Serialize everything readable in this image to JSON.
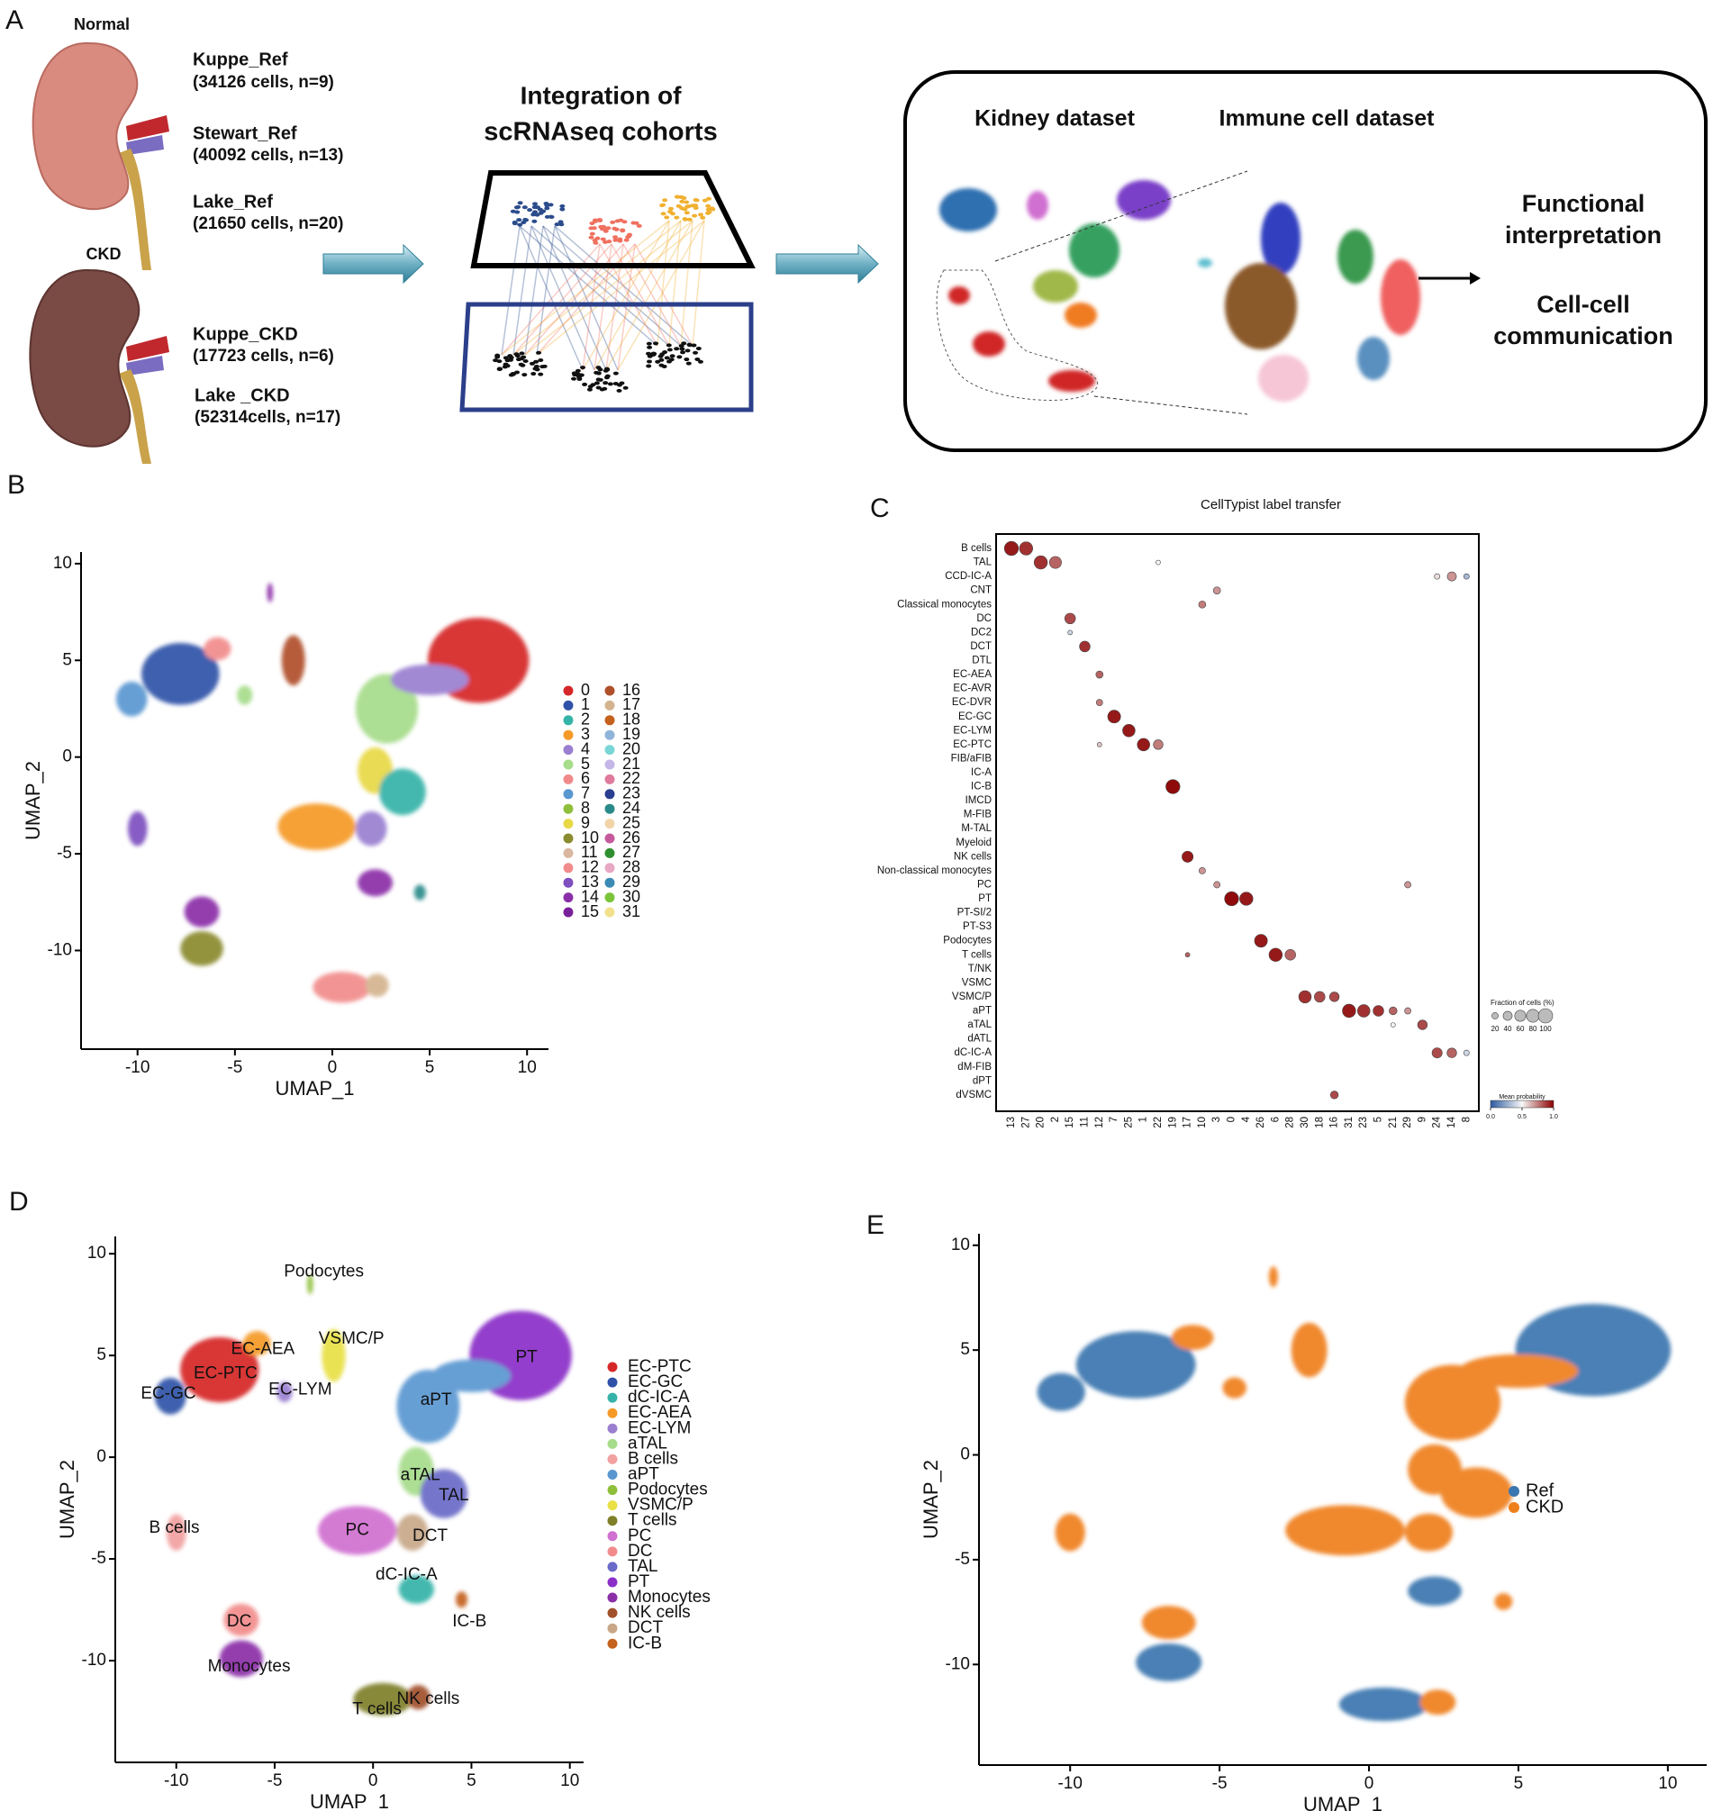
{
  "panel_labels": [
    "A",
    "B",
    "C",
    "D",
    "E"
  ],
  "overview": {
    "normal": "Normal",
    "ckd": "CKD",
    "datasets": [
      {
        "name": "Kuppe_Ref",
        "detail": "(34126 cells, n=9)"
      },
      {
        "name": "Stewart_Ref",
        "detail": "(40092 cells, n=13)"
      },
      {
        "name": "Lake_Ref",
        "detail": "(21650 cells, n=20)"
      },
      {
        "name": "Kuppe_CKD",
        "detail": "(17723 cells, n=6)"
      },
      {
        "name": "Lake _CKD",
        "detail": "(52314cells, n=17)"
      }
    ],
    "integration_title": [
      "Integration of",
      "scRNAseq cohorts"
    ],
    "kidney_dataset": "Kidney dataset",
    "immune_dataset": "Immune cell dataset",
    "outputs": [
      "Functional",
      "interpretation",
      "Cell-cell",
      "communication"
    ]
  },
  "umap_clouds": [
    {
      "x": 7.5,
      "y": 5,
      "rx": 2.6,
      "ry": 2.2
    },
    {
      "x": -7.8,
      "y": 4.3,
      "rx": 2.0,
      "ry": 1.6
    },
    {
      "x": -10.3,
      "y": 3,
      "rx": 0.8,
      "ry": 0.9
    },
    {
      "x": -5.9,
      "y": 5.6,
      "rx": 0.7,
      "ry": 0.6
    },
    {
      "x": -4.5,
      "y": 3.2,
      "rx": 0.4,
      "ry": 0.5
    },
    {
      "x": -2,
      "y": 5,
      "rx": 0.6,
      "ry": 1.3
    },
    {
      "x": -3.2,
      "y": 8.5,
      "rx": 0.15,
      "ry": 0.5
    },
    {
      "x": 2.8,
      "y": 2.5,
      "rx": 1.6,
      "ry": 1.8
    },
    {
      "x": 5,
      "y": 4,
      "rx": 2,
      "ry": 0.8
    },
    {
      "x": 2.2,
      "y": -0.7,
      "rx": 0.9,
      "ry": 1.2
    },
    {
      "x": 3.6,
      "y": -1.8,
      "rx": 1.2,
      "ry": 1.2
    },
    {
      "x": -0.8,
      "y": -3.6,
      "rx": 2,
      "ry": 1.2
    },
    {
      "x": 2,
      "y": -3.7,
      "rx": 0.8,
      "ry": 0.9
    },
    {
      "x": 2.2,
      "y": -6.5,
      "rx": 0.9,
      "ry": 0.7
    },
    {
      "x": 4.5,
      "y": -7,
      "rx": 0.3,
      "ry": 0.4
    },
    {
      "x": -10,
      "y": -3.7,
      "rx": 0.5,
      "ry": 0.9
    },
    {
      "x": -6.7,
      "y": -8,
      "rx": 0.9,
      "ry": 0.8
    },
    {
      "x": -6.7,
      "y": -9.9,
      "rx": 1.1,
      "ry": 0.9
    },
    {
      "x": 0.5,
      "y": -11.9,
      "rx": 1.5,
      "ry": 0.8
    },
    {
      "x": 2.3,
      "y": -11.8,
      "rx": 0.6,
      "ry": 0.6
    }
  ],
  "panel_b": {
    "xlabel": "UMAP_1",
    "ylabel": "UMAP_2",
    "xlim": [
      -12.9,
      11.1
    ],
    "ylim": [
      -15.1,
      10.6
    ],
    "xticks": [
      -10,
      -5,
      0,
      5,
      10
    ],
    "yticks": [
      -10,
      -5,
      0,
      5,
      10
    ],
    "clusters": [
      "0",
      "1",
      "2",
      "3",
      "4",
      "5",
      "6",
      "7",
      "8",
      "9",
      "10",
      "11",
      "12",
      "13",
      "14",
      "15",
      "16",
      "17",
      "18",
      "19",
      "20",
      "21",
      "22",
      "23",
      "24",
      "25",
      "26",
      "27",
      "28",
      "29",
      "30",
      "31"
    ],
    "colors": [
      "#d62728",
      "#2f52a8",
      "#36b3a8",
      "#f59a27",
      "#9a7fd1",
      "#a6dc8a",
      "#f08a8a",
      "#5a97d1",
      "#8fbf3b",
      "#e8d845",
      "#8a8a2e",
      "#d9b7a0",
      "#f28c8c",
      "#7d4fbf",
      "#8b2fa8",
      "#7a1f9a",
      "#b0502a",
      "#d4b48f",
      "#c4611c",
      "#8fb4d9",
      "#7ad6d6",
      "#c4b6e6",
      "#e07a9c",
      "#2a3f8f",
      "#2a8a8a",
      "#f2d4a8",
      "#c45a9c",
      "#2f8f2f",
      "#e8a8c4",
      "#3a8ab4",
      "#7bc43a",
      "#f2e08a"
    ],
    "cloud_cluster": [
      0,
      1,
      7,
      12,
      5,
      16,
      14,
      5,
      4,
      9,
      2,
      3,
      4,
      14,
      24,
      13,
      14,
      10,
      12,
      17
    ]
  },
  "panel_c": {
    "title": "CellTypist label transfer",
    "rows": [
      "B cells",
      "TAL",
      "CCD-IC-A",
      "CNT",
      "Classical monocytes",
      "DC",
      "DC2",
      "DCT",
      "DTL",
      "EC-AEA",
      "EC-AVR",
      "EC-DVR",
      "EC-GC",
      "EC-LYM",
      "EC-PTC",
      "FIB/aFIB",
      "IC-A",
      "IC-B",
      "IMCD",
      "M-FIB",
      "M-TAL",
      "Myeloid",
      "NK cells",
      "Non-classical monocytes",
      "PC",
      "PT",
      "PT-SI/2",
      "PT-S3",
      "Podocytes",
      "T cells",
      "T/NK",
      "VSMC",
      "VSMC/P",
      "aPT",
      "aTAL",
      "dATL",
      "dC-IC-A",
      "dM-FIB",
      "dPT",
      "dVSMC"
    ],
    "columns": [
      "13",
      "27",
      "20",
      "2",
      "15",
      "11",
      "12",
      "7",
      "25",
      "1",
      "22",
      "19",
      "17",
      "10",
      "3",
      "0",
      "4",
      "26",
      "6",
      "28",
      "30",
      "18",
      "16",
      "31",
      "23",
      "5",
      "21",
      "29",
      "9",
      "24",
      "14",
      "8"
    ],
    "dots": [
      {
        "row": 0,
        "col": 0,
        "fraction": 95,
        "probability": 0.95
      },
      {
        "row": 0,
        "col": 1,
        "fraction": 85,
        "probability": 0.9
      },
      {
        "row": 1,
        "col": 2,
        "fraction": 85,
        "probability": 0.9
      },
      {
        "row": 1,
        "col": 3,
        "fraction": 70,
        "probability": 0.8
      },
      {
        "row": 1,
        "col": 10,
        "fraction": 10,
        "probability": 0.5
      },
      {
        "row": 2,
        "col": 29,
        "fraction": 15,
        "probability": 0.55
      },
      {
        "row": 2,
        "col": 30,
        "fraction": 40,
        "probability": 0.7
      },
      {
        "row": 2,
        "col": 31,
        "fraction": 15,
        "probability": 0.3
      },
      {
        "row": 3,
        "col": 14,
        "fraction": 25,
        "probability": 0.7
      },
      {
        "row": 4,
        "col": 13,
        "fraction": 25,
        "probability": 0.75
      },
      {
        "row": 5,
        "col": 4,
        "fraction": 55,
        "probability": 0.85
      },
      {
        "row": 6,
        "col": 4,
        "fraction": 10,
        "probability": 0.4
      },
      {
        "row": 7,
        "col": 5,
        "fraction": 55,
        "probability": 0.9
      },
      {
        "row": 9,
        "col": 6,
        "fraction": 25,
        "probability": 0.8
      },
      {
        "row": 11,
        "col": 6,
        "fraction": 20,
        "probability": 0.75
      },
      {
        "row": 12,
        "col": 7,
        "fraction": 80,
        "probability": 0.95
      },
      {
        "row": 13,
        "col": 8,
        "fraction": 75,
        "probability": 0.95
      },
      {
        "row": 14,
        "col": 9,
        "fraction": 75,
        "probability": 0.95
      },
      {
        "row": 14,
        "col": 10,
        "fraction": 45,
        "probability": 0.75
      },
      {
        "row": 14,
        "col": 6,
        "fraction": 10,
        "probability": 0.6
      },
      {
        "row": 17,
        "col": 11,
        "fraction": 95,
        "probability": 0.98
      },
      {
        "row": 22,
        "col": 12,
        "fraction": 60,
        "probability": 0.95
      },
      {
        "row": 23,
        "col": 13,
        "fraction": 20,
        "probability": 0.7
      },
      {
        "row": 24,
        "col": 14,
        "fraction": 20,
        "probability": 0.7
      },
      {
        "row": 24,
        "col": 27,
        "fraction": 20,
        "probability": 0.7
      },
      {
        "row": 25,
        "col": 15,
        "fraction": 95,
        "probability": 0.98
      },
      {
        "row": 25,
        "col": 16,
        "fraction": 85,
        "probability": 0.95
      },
      {
        "row": 28,
        "col": 17,
        "fraction": 80,
        "probability": 0.95
      },
      {
        "row": 29,
        "col": 18,
        "fraction": 85,
        "probability": 0.95
      },
      {
        "row": 29,
        "col": 19,
        "fraction": 55,
        "probability": 0.8
      },
      {
        "row": 29,
        "col": 12,
        "fraction": 10,
        "probability": 0.8
      },
      {
        "row": 32,
        "col": 20,
        "fraction": 75,
        "probability": 0.9
      },
      {
        "row": 32,
        "col": 21,
        "fraction": 55,
        "probability": 0.85
      },
      {
        "row": 32,
        "col": 22,
        "fraction": 45,
        "probability": 0.85
      },
      {
        "row": 33,
        "col": 23,
        "fraction": 85,
        "probability": 0.95
      },
      {
        "row": 33,
        "col": 24,
        "fraction": 75,
        "probability": 0.9
      },
      {
        "row": 33,
        "col": 25,
        "fraction": 55,
        "probability": 0.9
      },
      {
        "row": 33,
        "col": 26,
        "fraction": 30,
        "probability": 0.8
      },
      {
        "row": 33,
        "col": 27,
        "fraction": 20,
        "probability": 0.7
      },
      {
        "row": 34,
        "col": 28,
        "fraction": 45,
        "probability": 0.85
      },
      {
        "row": 34,
        "col": 26,
        "fraction": 10,
        "probability": 0.5
      },
      {
        "row": 36,
        "col": 29,
        "fraction": 50,
        "probability": 0.85
      },
      {
        "row": 36,
        "col": 30,
        "fraction": 45,
        "probability": 0.8
      },
      {
        "row": 36,
        "col": 31,
        "fraction": 15,
        "probability": 0.4
      },
      {
        "row": 39,
        "col": 22,
        "fraction": 30,
        "probability": 0.85
      }
    ],
    "size_title": "Fraction of cells (%)",
    "size_ticks": [
      20,
      40,
      60,
      80,
      100
    ],
    "color_title": "Mean probability",
    "color_ticks": [
      {
        "value": 0,
        "label": "0.0"
      },
      0.5,
      {
        "value": 1,
        "label": "1.0"
      }
    ],
    "colormap": [
      "#2c5aa0",
      "#f7f7f7",
      "#8b0000"
    ]
  },
  "panel_d": {
    "xlabel": "UMAP_1",
    "ylabel": "UMAP_2",
    "xlim": [
      -13.1,
      10.7
    ],
    "ylim": [
      -15,
      10.85
    ],
    "xticks": [
      -10,
      -5,
      0,
      5,
      10
    ],
    "yticks": [
      -10,
      -5,
      0,
      5,
      10
    ],
    "cell_types": [
      "EC-PTC",
      "EC-GC",
      "dC-IC-A",
      "EC-AEA",
      "EC-LYM",
      "aTAL",
      "B cells",
      "aPT",
      "Podocytes",
      "VSMC/P",
      "T cells",
      "PC",
      "DC",
      "TAL",
      "PT",
      "Monocytes",
      "NK cells",
      "DCT",
      "IC-B"
    ],
    "colors": [
      "#d62728",
      "#2f52a8",
      "#36b3a8",
      "#f59a27",
      "#9a7fd1",
      "#a6dc8a",
      "#f2a0a0",
      "#5a97d1",
      "#8fbf3b",
      "#e8e045",
      "#7f7f2a",
      "#d070d0",
      "#f28c8c",
      "#6a6ac8",
      "#8a2fc8",
      "#8b2fa8",
      "#a0502a",
      "#c8a888",
      "#c4611c"
    ],
    "cloud_type": [
      14,
      0,
      1,
      3,
      4,
      9,
      8,
      7,
      7,
      5,
      13,
      11,
      17,
      2,
      18,
      6,
      12,
      15,
      10,
      16
    ],
    "labels": [
      {
        "type": 8,
        "x": -2.5,
        "y": 9.1
      },
      {
        "type": 9,
        "x": -1.1,
        "y": 5.8
      },
      {
        "type": 3,
        "x": -5.6,
        "y": 5.3
      },
      {
        "type": 0,
        "x": -7.5,
        "y": 4.1
      },
      {
        "type": 1,
        "x": -10.4,
        "y": 3.1
      },
      {
        "type": 4,
        "x": -3.7,
        "y": 3.3
      },
      {
        "type": 14,
        "x": 7.8,
        "y": 4.9
      },
      {
        "type": 7,
        "x": 3.2,
        "y": 2.8
      },
      {
        "type": 5,
        "x": 2.4,
        "y": -0.9
      },
      {
        "type": 13,
        "x": 4.1,
        "y": -1.9
      },
      {
        "type": 11,
        "x": -0.8,
        "y": -3.6
      },
      {
        "type": 17,
        "x": 2.9,
        "y": -3.9
      },
      {
        "type": 2,
        "x": 1.7,
        "y": -5.8
      },
      {
        "type": 18,
        "x": 4.9,
        "y": -8.1
      },
      {
        "type": 6,
        "x": -10.1,
        "y": -3.5
      },
      {
        "type": 12,
        "x": -6.8,
        "y": -8.1
      },
      {
        "type": 15,
        "x": -6.3,
        "y": -10.3
      },
      {
        "type": 10,
        "x": 0.2,
        "y": -12.4
      },
      {
        "type": 16,
        "x": 2.8,
        "y": -11.9
      }
    ]
  },
  "panel_e": {
    "xlabel": "UMAP_1",
    "ylabel": "UMAP_2",
    "xlim": [
      -13.05,
      11.3
    ],
    "ylim": [
      -14.8,
      10.55
    ],
    "xticks": [
      -10,
      -5,
      0,
      5,
      10
    ],
    "yticks": [
      -10,
      -5,
      0,
      5,
      10
    ],
    "groups": [
      "Ref",
      "CKD"
    ],
    "colors": [
      "#3a76af",
      "#ef7f1a"
    ],
    "cloud_group": [
      0,
      0,
      0,
      1,
      1,
      1,
      1,
      1,
      1,
      1,
      1,
      1,
      1,
      0,
      1,
      1,
      1,
      0,
      0,
      1
    ]
  }
}
